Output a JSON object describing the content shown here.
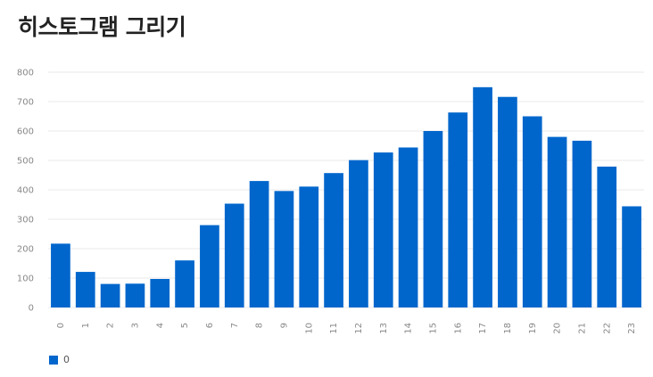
{
  "title": "히스토그램 그리기",
  "chart_data": {
    "type": "bar",
    "categories": [
      "0",
      "1",
      "2",
      "3",
      "4",
      "5",
      "6",
      "7",
      "8",
      "9",
      "10",
      "11",
      "12",
      "13",
      "14",
      "15",
      "16",
      "17",
      "18",
      "19",
      "20",
      "21",
      "22",
      "23"
    ],
    "series": [
      {
        "name": "0",
        "color": "#0066cc",
        "values": [
          217,
          121,
          80,
          81,
          97,
          160,
          280,
          353,
          430,
          396,
          411,
          457,
          501,
          527,
          544,
          600,
          663,
          749,
          716,
          650,
          580,
          567,
          479,
          344
        ]
      }
    ],
    "xlabel": "",
    "ylabel": "",
    "ylim": [
      0,
      800
    ],
    "yticks": [
      0,
      100,
      200,
      300,
      400,
      500,
      600,
      700,
      800
    ],
    "grid": true,
    "legend": "bottom-left"
  }
}
